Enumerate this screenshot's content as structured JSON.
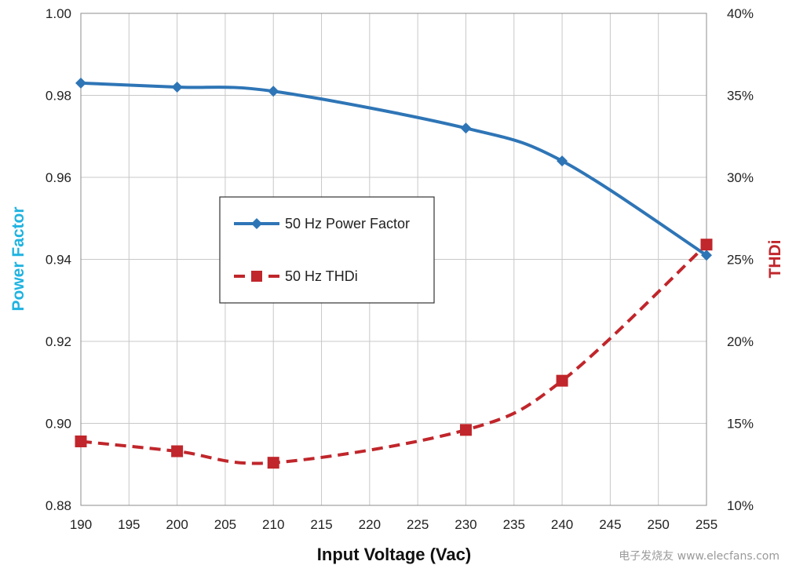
{
  "chart_data": {
    "type": "line",
    "title": "",
    "xlabel": "Input Voltage (Vac)",
    "ylabel_left": "Power Factor",
    "ylabel_right": "THDi",
    "xlim": [
      190,
      255
    ],
    "ylim_left": [
      0.88,
      1.0
    ],
    "ylim_right": [
      10,
      40
    ],
    "grid": true,
    "legend_position": "center-left",
    "x_ticks": [
      "190",
      "195",
      "200",
      "205",
      "210",
      "215",
      "220",
      "225",
      "230",
      "235",
      "240",
      "245",
      "250",
      "255"
    ],
    "y_left_ticks": [
      "0.88",
      "0.90",
      "0.92",
      "0.94",
      "0.96",
      "0.98",
      "1.00"
    ],
    "y_right_ticks": [
      "10%",
      "15%",
      "20%",
      "25%",
      "30%",
      "35%",
      "40%"
    ],
    "series": [
      {
        "name": "50 Hz Power Factor",
        "axis": "left",
        "color": "#2e75b6",
        "marker": "diamond",
        "x": [
          190,
          200,
          210,
          230,
          240,
          255
        ],
        "values": [
          0.983,
          0.982,
          0.981,
          0.972,
          0.964,
          0.941
        ]
      },
      {
        "name": "50 Hz THDi",
        "axis": "right",
        "color": "#c0262b",
        "marker": "square",
        "dashed": true,
        "x": [
          190,
          200,
          210,
          230,
          240,
          255
        ],
        "values": [
          13.9,
          13.3,
          12.6,
          14.6,
          17.6,
          25.9
        ]
      }
    ]
  },
  "watermark": "电子发烧友 www.elecfans.com"
}
